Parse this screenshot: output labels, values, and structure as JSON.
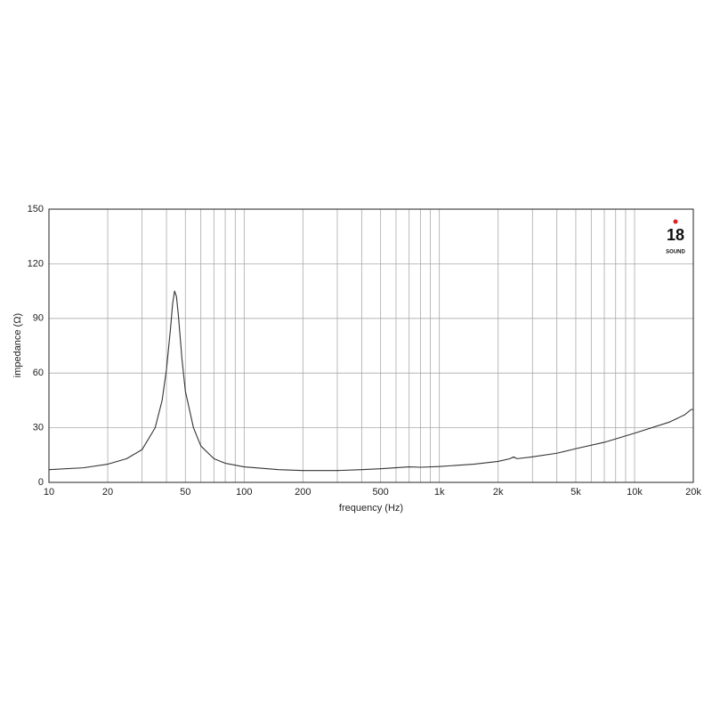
{
  "chart_data": {
    "type": "line",
    "xscale": "log",
    "grid": true,
    "xlabel": "frequency (Hz)",
    "ylabel": "impedance (Ω)",
    "xlim": [
      10,
      20000
    ],
    "ylim": [
      0,
      150
    ],
    "xticks": [
      10,
      20,
      50,
      100,
      200,
      500,
      {
        "value": 1000,
        "label": "1k"
      },
      {
        "value": 2000,
        "label": "2k"
      },
      {
        "value": 5000,
        "label": "5k"
      },
      {
        "value": 10000,
        "label": "10k"
      },
      {
        "value": 20000,
        "label": "20k"
      }
    ],
    "xminor_ticks": [
      30,
      40,
      60,
      70,
      80,
      90,
      300,
      400,
      600,
      700,
      800,
      900,
      3000,
      4000,
      6000,
      7000,
      8000,
      9000
    ],
    "yticks": [
      0,
      30,
      60,
      90,
      120,
      150
    ],
    "series": [
      {
        "color": "#333333",
        "x": [
          10,
          15,
          20,
          25,
          30,
          35,
          38,
          40,
          42,
          43,
          44,
          45,
          46,
          48,
          50,
          55,
          60,
          70,
          80,
          100,
          150,
          200,
          300,
          400,
          500,
          700,
          800,
          1000,
          1500,
          2000,
          2300,
          2400,
          2500,
          3000,
          4000,
          5000,
          7000,
          10000,
          15000,
          18000,
          19500,
          20000
        ],
        "values": [
          7,
          8,
          10,
          13,
          18,
          30,
          45,
          62,
          85,
          98,
          105,
          102,
          92,
          68,
          50,
          30,
          20,
          13,
          10.5,
          8.5,
          7,
          6.5,
          6.5,
          7,
          7.5,
          8.5,
          8.3,
          8.7,
          10,
          11.5,
          13,
          14,
          13,
          14,
          16,
          18.5,
          22,
          27,
          33,
          37,
          40,
          40
        ]
      }
    ],
    "logo": {
      "number": "18",
      "name": "SOUND"
    }
  }
}
